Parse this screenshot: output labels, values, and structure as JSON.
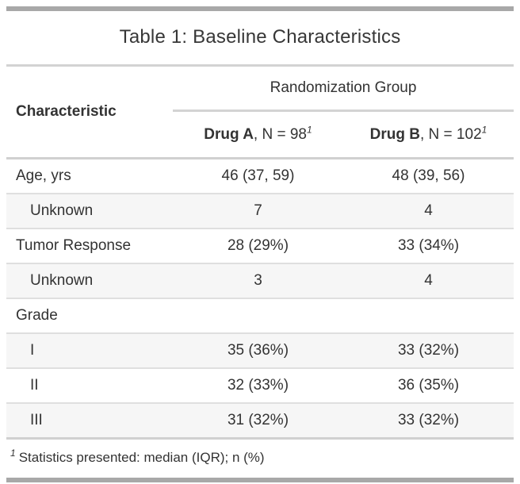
{
  "table": {
    "title": "Table 1: Baseline Characteristics",
    "columns": {
      "stub_header": "Characteristic",
      "spanner": "Randomization Group",
      "groups": [
        {
          "name": "Drug A",
          "n_text": ", N = 98",
          "footnote_mark": "1"
        },
        {
          "name": "Drug B",
          "n_text": ", N = 102",
          "footnote_mark": "1"
        }
      ]
    },
    "rows": [
      {
        "label": "Age, yrs",
        "indent": false,
        "drug_a": "46 (37, 59)",
        "drug_b": "48 (39, 56)",
        "striped": false
      },
      {
        "label": "Unknown",
        "indent": true,
        "drug_a": "7",
        "drug_b": "4",
        "striped": true
      },
      {
        "label": "Tumor Response",
        "indent": false,
        "drug_a": "28 (29%)",
        "drug_b": "33 (34%)",
        "striped": false
      },
      {
        "label": "Unknown",
        "indent": true,
        "drug_a": "3",
        "drug_b": "4",
        "striped": true
      },
      {
        "label": "Grade",
        "indent": false,
        "drug_a": "",
        "drug_b": "",
        "striped": false
      },
      {
        "label": "I",
        "indent": true,
        "drug_a": "35 (36%)",
        "drug_b": "33 (32%)",
        "striped": true
      },
      {
        "label": "II",
        "indent": true,
        "drug_a": "32 (33%)",
        "drug_b": "36 (35%)",
        "striped": false
      },
      {
        "label": "III",
        "indent": true,
        "drug_a": "31 (32%)",
        "drug_b": "33 (32%)",
        "striped": true
      }
    ],
    "footnote": {
      "mark": "1",
      "text": "Statistics presented: median (IQR); n (%)"
    }
  },
  "colors": {
    "heavy_border": "#A8A8A8",
    "section_separator": "#D3D3D3",
    "row_divider": "#DFDFDF",
    "stripe_background": "#F6F6F6",
    "text": "#333333",
    "page_background": "#FFFFFF"
  }
}
